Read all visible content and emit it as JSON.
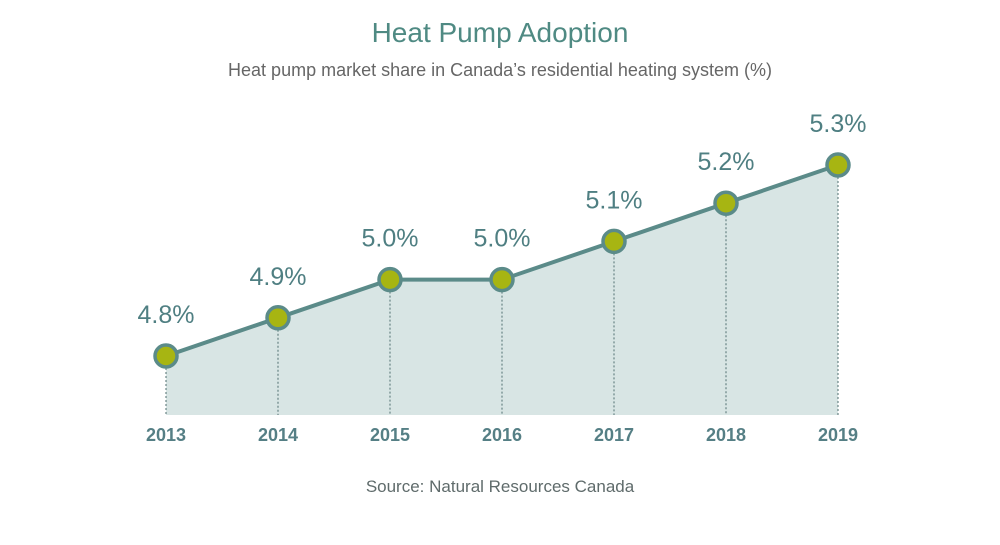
{
  "header": {
    "title": "Heat Pump Adoption",
    "subtitle": "Heat pump market share in Canada’s residential heating system (%)"
  },
  "footer": {
    "source": "Source: Natural Resources Canada"
  },
  "colors": {
    "line": "#5b8b89",
    "area": "#d8e5e4",
    "marker_fill": "#a7b512",
    "marker_stroke": "#5b8b89",
    "text_accent": "#4f8a83"
  },
  "chart_data": {
    "type": "area",
    "title": "Heat Pump Adoption",
    "subtitle": "Heat pump market share in Canada’s residential heating system (%)",
    "categories": [
      "2013",
      "2014",
      "2015",
      "2016",
      "2017",
      "2018",
      "2019"
    ],
    "series": [
      {
        "values": [
          4.8,
          4.9,
          5.0,
          5.0,
          5.1,
          5.2,
          5.3
        ],
        "labels": [
          "4.8%",
          "4.9%",
          "5.0%",
          "5.0%",
          "5.1%",
          "5.2%",
          "5.3%"
        ]
      }
    ],
    "ylim": [
      4.5,
      5.3
    ],
    "grid": false,
    "legend": "none",
    "source": "Source: Natural Resources Canada"
  }
}
